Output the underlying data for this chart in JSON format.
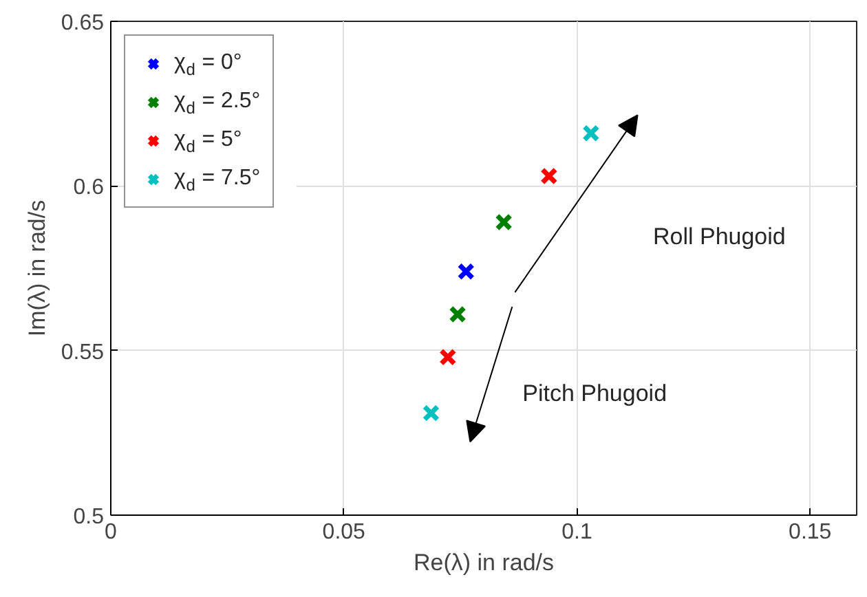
{
  "chart_data": {
    "type": "scatter",
    "xlabel": "Re(λ) in rad/s",
    "ylabel": "Im(λ) in rad/s",
    "xlim": [
      0,
      0.16
    ],
    "ylim": [
      0.5,
      0.65
    ],
    "xticks": [
      0,
      0.05,
      0.1,
      0.15
    ],
    "yticks": [
      0.5,
      0.55,
      0.6,
      0.65
    ],
    "grid": true,
    "legend": "top left",
    "marker": "cross",
    "series": [
      {
        "name": "χ$_{d}$ = 0°",
        "color": "#0000ff",
        "x": [
          0.0762
        ],
        "values": [
          0.574
        ]
      },
      {
        "name": "χ$_{d}$ = 2.5°",
        "color": "#008000",
        "x": [
          0.0843,
          0.0744
        ],
        "values": [
          0.589,
          0.561
        ]
      },
      {
        "name": "χ$_{d}$ = 5°",
        "color": "#ff0000",
        "x": [
          0.094,
          0.0723
        ],
        "values": [
          0.603,
          0.548
        ]
      },
      {
        "name": "χ$_{d}$ = 7.5°",
        "color": "#00bfbf",
        "x": [
          0.103,
          0.0687
        ],
        "values": [
          0.616,
          0.531
        ]
      }
    ],
    "annotations": [
      "Roll Phugoid",
      "Pitch Phugoid"
    ]
  }
}
